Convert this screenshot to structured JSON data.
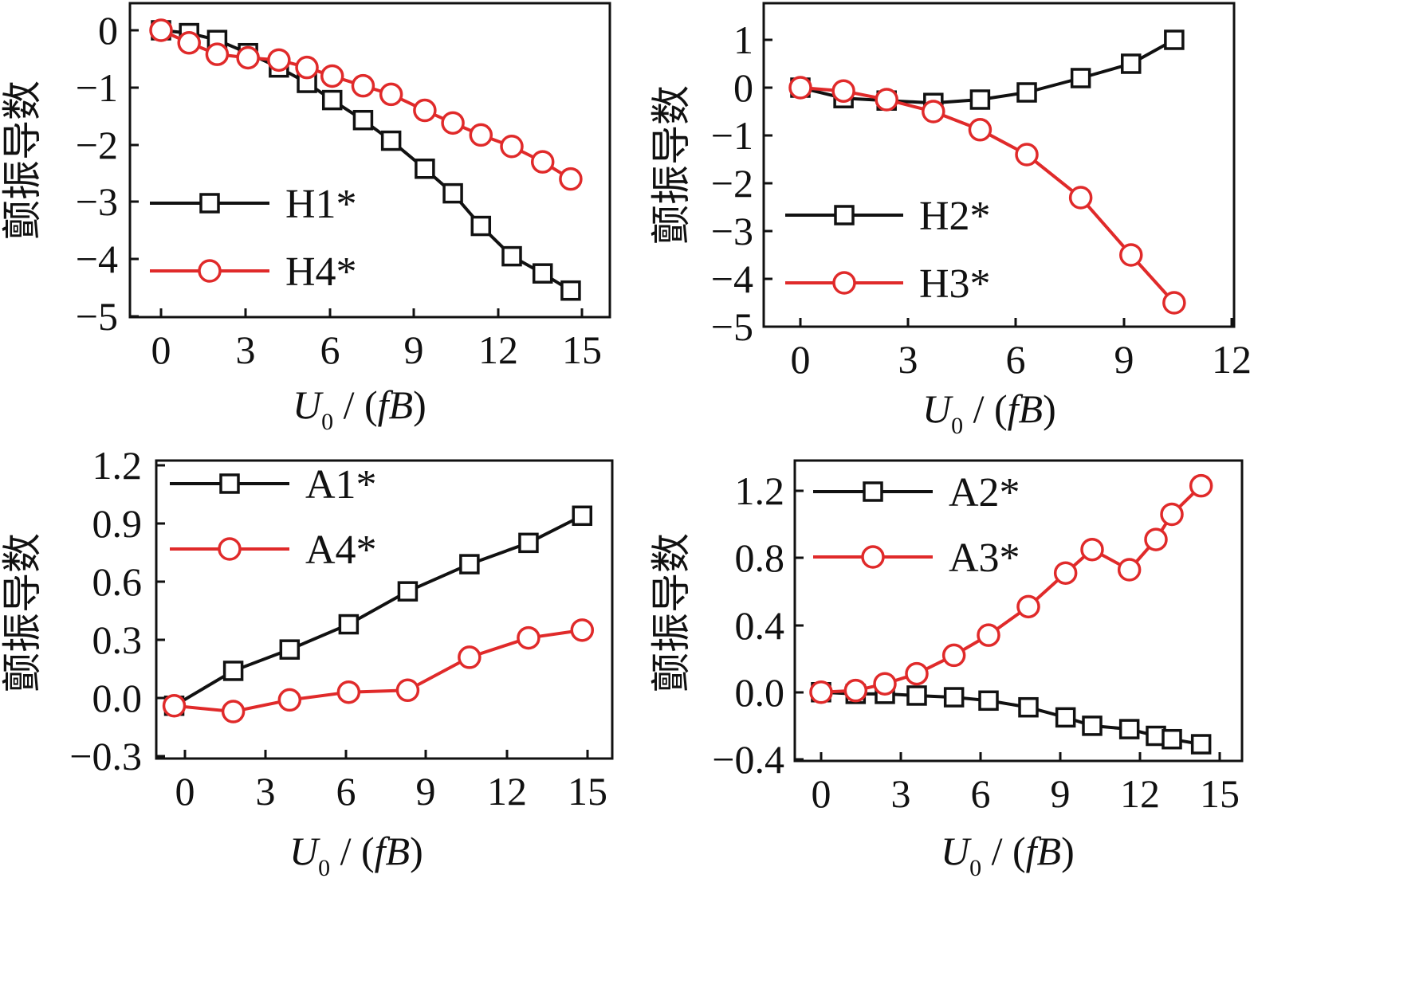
{
  "charts": [
    {
      "id": "h14",
      "ylabel": "颤振导数",
      "x_ticks": [
        "0",
        "3",
        "6",
        "9",
        "12",
        "15"
      ],
      "y_ticks": [
        "0",
        "−1",
        "−2",
        "−3",
        "−4",
        "−5"
      ]
    },
    {
      "id": "h23",
      "ylabel": "颤振导数",
      "x_ticks": [
        "0",
        "3",
        "6",
        "9",
        "12"
      ],
      "y_ticks": [
        "1",
        "0",
        "−1",
        "−2",
        "−3",
        "−4",
        "−5"
      ]
    },
    {
      "id": "a14",
      "ylabel": "颤振导数",
      "x_ticks": [
        "0",
        "3",
        "6",
        "9",
        "12",
        "15"
      ],
      "y_ticks": [
        "1.2",
        "0.9",
        "0.6",
        "0.3",
        "0.0",
        "−0.3"
      ]
    },
    {
      "id": "a23",
      "ylabel": "颤振导数",
      "x_ticks": [
        "0",
        "3",
        "6",
        "9",
        "12",
        "15"
      ],
      "y_ticks": [
        "1.2",
        "0.8",
        "0.4",
        "0.0",
        "−0.4"
      ]
    }
  ],
  "xlabel": {
    "main": "U",
    "sub": "0",
    "rest": " / (",
    "unit": "fB",
    "close": ")"
  },
  "colors": {
    "black_series": "#111111",
    "red_series": "#e02a2a",
    "axis": "#111111"
  },
  "chart_data": [
    {
      "type": "line",
      "xlim": [
        -1,
        16
      ],
      "ylim": [
        -5,
        0.5
      ],
      "legend_position": "lower-left",
      "series": [
        {
          "name": "H1*",
          "marker": "square",
          "color": "#111111",
          "x": [
            0,
            1.0,
            2.0,
            3.1,
            4.2,
            5.2,
            6.1,
            7.2,
            8.2,
            9.4,
            10.4,
            11.4,
            12.5,
            13.6,
            14.6
          ],
          "y": [
            0,
            -0.05,
            -0.17,
            -0.4,
            -0.65,
            -0.92,
            -1.22,
            -1.57,
            -1.93,
            -2.42,
            -2.85,
            -3.42,
            -3.95,
            -4.25,
            -4.55
          ]
        },
        {
          "name": "H4*",
          "marker": "circle",
          "color": "#e02a2a",
          "x": [
            0,
            1.0,
            2.0,
            3.1,
            4.2,
            5.2,
            6.1,
            7.2,
            8.2,
            9.4,
            10.4,
            11.4,
            12.5,
            13.6,
            14.6
          ],
          "y": [
            0,
            -0.22,
            -0.42,
            -0.48,
            -0.52,
            -0.65,
            -0.8,
            -0.97,
            -1.12,
            -1.4,
            -1.62,
            -1.83,
            -2.03,
            -2.3,
            -2.6
          ]
        }
      ]
    },
    {
      "type": "line",
      "xlim": [
        -1,
        12.2
      ],
      "ylim": [
        -5,
        1.5
      ],
      "legend_position": "lower-left",
      "series": [
        {
          "name": "H2*",
          "marker": "square",
          "color": "#111111",
          "x": [
            0,
            1.2,
            2.4,
            3.7,
            5.0,
            6.3,
            7.8,
            9.2,
            10.4
          ],
          "y": [
            0,
            -0.22,
            -0.27,
            -0.32,
            -0.25,
            -0.1,
            0.2,
            0.5,
            1.0
          ]
        },
        {
          "name": "H3*",
          "marker": "circle",
          "color": "#e02a2a",
          "x": [
            0,
            1.2,
            2.4,
            3.7,
            5.0,
            6.3,
            7.8,
            9.2,
            10.4
          ],
          "y": [
            0,
            -0.07,
            -0.25,
            -0.5,
            -0.88,
            -1.4,
            -2.3,
            -3.5,
            -4.5
          ]
        }
      ]
    },
    {
      "type": "line",
      "xlim": [
        -1,
        16
      ],
      "ylim": [
        -0.3,
        1.2
      ],
      "legend_position": "top-left",
      "series": [
        {
          "name": "A1*",
          "marker": "square",
          "color": "#111111",
          "x": [
            -0.4,
            1.8,
            3.9,
            6.1,
            8.3,
            10.6,
            12.8,
            14.8
          ],
          "y": [
            -0.04,
            0.14,
            0.25,
            0.38,
            0.55,
            0.69,
            0.8,
            0.94
          ]
        },
        {
          "name": "A4*",
          "marker": "circle",
          "color": "#e02a2a",
          "x": [
            -0.4,
            1.8,
            3.9,
            6.1,
            8.3,
            10.6,
            12.8,
            14.8
          ],
          "y": [
            -0.04,
            -0.07,
            -0.01,
            0.03,
            0.04,
            0.21,
            0.31,
            0.35
          ]
        }
      ]
    },
    {
      "type": "line",
      "xlim": [
        -1,
        16
      ],
      "ylim": [
        -0.4,
        1.4
      ],
      "legend_position": "top-left",
      "series": [
        {
          "name": "A2*",
          "marker": "square",
          "color": "#111111",
          "x": [
            0,
            1.3,
            2.4,
            3.6,
            5.0,
            6.3,
            7.8,
            9.2,
            10.2,
            11.6,
            12.6,
            13.2,
            14.3
          ],
          "y": [
            0,
            -0.01,
            -0.01,
            -0.02,
            -0.03,
            -0.05,
            -0.09,
            -0.15,
            -0.2,
            -0.22,
            -0.26,
            -0.28,
            -0.31
          ]
        },
        {
          "name": "A3*",
          "marker": "circle",
          "color": "#e02a2a",
          "x": [
            0,
            1.3,
            2.4,
            3.6,
            5.0,
            6.3,
            7.8,
            9.2,
            10.2,
            11.6,
            12.6,
            13.2,
            14.3
          ],
          "y": [
            0,
            0.01,
            0.05,
            0.11,
            0.22,
            0.34,
            0.51,
            0.71,
            0.85,
            0.73,
            0.91,
            1.06,
            1.23
          ]
        }
      ]
    }
  ]
}
